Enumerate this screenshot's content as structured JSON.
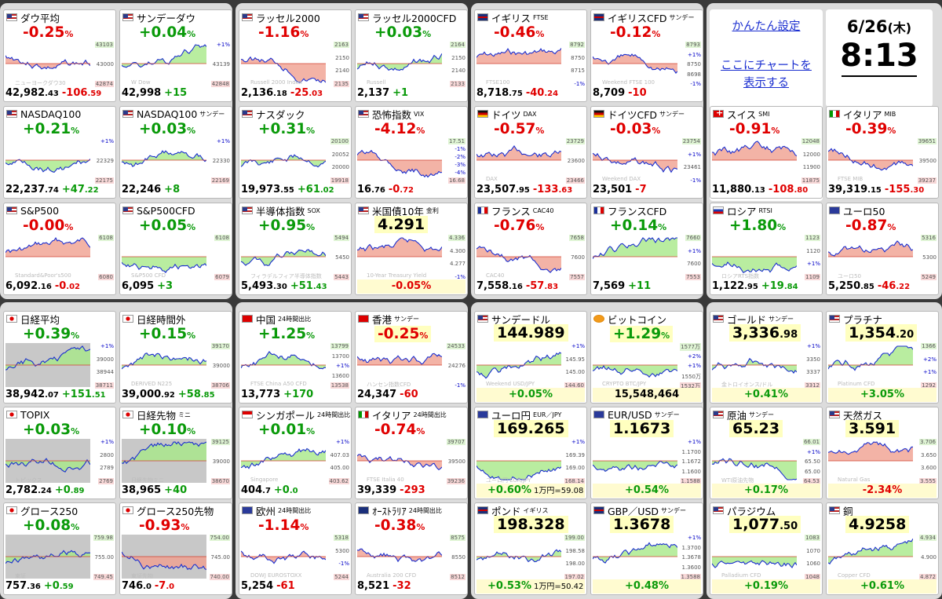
{
  "settings": {
    "easy_setup_label": "かんたん設定",
    "chart_here_line1": "ここにチャートを",
    "chart_here_line2": "表示する"
  },
  "clock": {
    "date": "6/26",
    "weekday": "(木)",
    "time": "8:13"
  },
  "colors": {
    "up": "#0a9a0a",
    "down": "#e00000",
    "fill_up": "#a8e888",
    "fill_down": "#f0a090",
    "line": "#1a2ed0"
  },
  "tiles": [
    {
      "flag": "us",
      "name": "ダウ平均",
      "sub": "",
      "pct": "-0.25",
      "dir": "dn",
      "scale": [
        "43103",
        "43000",
        "42874"
      ],
      "wm": "ニューヨークダウ30",
      "value": "42,982",
      "value_dec": ".43",
      "change": "-106",
      "change_dec": ".59",
      "cdir": "dn"
    },
    {
      "flag": "us",
      "name": "サンデーダウ",
      "sub": "",
      "pct": "+0.04",
      "dir": "up",
      "scale": [
        "+1%",
        "43139",
        "42848"
      ],
      "wm": "W            Dow",
      "value": "42,998",
      "value_dec": "",
      "change": "+15",
      "change_dec": "",
      "cdir": "up"
    },
    {
      "flag": "us",
      "name": "ラッセル2000",
      "sub": "",
      "pct": "-1.16",
      "dir": "dn",
      "scale": [
        "2163",
        "2150",
        "2140",
        "2135"
      ],
      "wm": "Russell 2000 Index",
      "value": "2,136",
      "value_dec": ".18",
      "change": "-25",
      "change_dec": ".03",
      "cdir": "dn"
    },
    {
      "flag": "us",
      "name": "ラッセル2000CFD",
      "sub": "",
      "pct": "+0.03",
      "dir": "up",
      "scale": [
        "2164",
        "2150",
        "2140",
        "2133"
      ],
      "wm": "Russell",
      "value": "2,137",
      "value_dec": "",
      "change": "+1",
      "change_dec": "",
      "cdir": "up"
    },
    {
      "flag": "uk",
      "name": "イギリス",
      "sub": "FTSE",
      "pct": "-0.46",
      "dir": "dn",
      "scale": [
        "8792",
        "8750",
        "8715",
        "-1%"
      ],
      "wm": "FTSE100",
      "value": "8,718",
      "value_dec": ".75",
      "change": "-40",
      "change_dec": ".24",
      "cdir": "dn"
    },
    {
      "flag": "uk",
      "name": "イギリスCFD",
      "sub": "サンデー",
      "pct": "-0.12",
      "dir": "dn",
      "scale": [
        "8793",
        "+1%",
        "8750",
        "8698",
        "-1%"
      ],
      "wm": "Weekend FTSE 100",
      "value": "8,709",
      "value_dec": "",
      "change": "-10",
      "change_dec": "",
      "cdir": "dn"
    },
    {
      "flag": "us",
      "name": "NASDAQ100",
      "sub": "",
      "pct": "+0.21",
      "dir": "up",
      "scale": [
        "+1%",
        "22329",
        "22175"
      ],
      "wm": "",
      "value": "22,237",
      "value_dec": ".74",
      "change": "+47",
      "change_dec": ".22",
      "cdir": "up"
    },
    {
      "flag": "us",
      "name": "NASDAQ100",
      "sub": "サンデー",
      "pct": "+0.03",
      "dir": "up",
      "scale": [
        "+1%",
        "22330",
        "22169"
      ],
      "wm": "",
      "value": "22,246",
      "value_dec": "",
      "change": "+8",
      "change_dec": "",
      "cdir": "up"
    },
    {
      "flag": "us",
      "name": "ナスダック",
      "sub": "",
      "pct": "+0.31",
      "dir": "up",
      "scale": [
        "20100",
        "20052",
        "20000",
        "19918"
      ],
      "wm": "",
      "value": "19,973",
      "value_dec": ".55",
      "change": "+61",
      "change_dec": ".02",
      "cdir": "up"
    },
    {
      "flag": "us",
      "name": "恐怖指数",
      "sub": "VIX",
      "pct": "-4.12",
      "dir": "dn",
      "scale": [
        "17.51",
        "-1%",
        "-2%",
        "-3%",
        "-4%",
        "16.68"
      ],
      "wm": "",
      "value": "16",
      "value_dec": ".76",
      "change": "-0",
      "change_dec": ".72",
      "cdir": "dn"
    },
    {
      "flag": "de",
      "name": "ドイツ",
      "sub": "DAX",
      "pct": "-0.57",
      "dir": "dn",
      "scale": [
        "23729",
        "23600",
        "23466"
      ],
      "wm": "DAX",
      "value": "23,507",
      "value_dec": ".95",
      "change": "-133",
      "change_dec": ".63",
      "cdir": "dn"
    },
    {
      "flag": "de",
      "name": "ドイツCFD",
      "sub": "サンデー",
      "pct": "-0.03",
      "dir": "dn",
      "scale": [
        "23754",
        "+1%",
        "23461",
        "-1%"
      ],
      "wm": "Weekend DAX",
      "value": "23,501",
      "value_dec": "",
      "change": "-7",
      "change_dec": "",
      "cdir": "dn"
    },
    {
      "flag": "ch",
      "name": "スイス",
      "sub": "SMI",
      "pct": "-0.91",
      "dir": "dn",
      "scale": [
        "12048",
        "12000",
        "11900",
        "11875"
      ],
      "wm": "",
      "value": "11,880",
      "value_dec": ".13",
      "change": "-108",
      "change_dec": ".80",
      "cdir": "dn"
    },
    {
      "flag": "it",
      "name": "イタリア",
      "sub": "MIB",
      "pct": "-0.39",
      "dir": "dn",
      "scale": [
        "39651",
        "39500",
        "39237"
      ],
      "wm": "FTSE MIB",
      "value": "39,319",
      "value_dec": ".15",
      "change": "-155",
      "change_dec": ".30",
      "cdir": "dn"
    },
    {
      "flag": "us",
      "name": "S&P500",
      "sub": "",
      "pct": "-0.00",
      "dir": "dn",
      "scale": [
        "6108",
        "6080"
      ],
      "wm": "Standard&Poor's500",
      "value": "6,092",
      "value_dec": ".16",
      "change": "-0",
      "change_dec": ".02",
      "cdir": "dn"
    },
    {
      "flag": "us",
      "name": "S&P500CFD",
      "sub": "",
      "pct": "+0.05",
      "dir": "up",
      "scale": [
        "6108",
        "6079"
      ],
      "wm": "S&P500 CFD",
      "value": "6,095",
      "value_dec": "",
      "change": "+3",
      "change_dec": "",
      "cdir": "up"
    },
    {
      "flag": "us",
      "name": "半導体指数",
      "sub": "SOX",
      "pct": "+0.95",
      "dir": "up",
      "scale": [
        "5494",
        "5450",
        "5443"
      ],
      "wm": "フィラデルフィア半導体指数",
      "value": "5,493",
      "value_dec": ".30",
      "change": "+51",
      "change_dec": ".43",
      "cdir": "up"
    },
    {
      "flag": "us",
      "name": "米国債10年",
      "sub": "金利",
      "big": "4.291",
      "dir": "bk",
      "scale": [
        "4.336",
        "4.300",
        "4.277",
        "-1%"
      ],
      "wm": "10-Year Treasury Yield",
      "footcenter": "-0.05%",
      "fdir": "dn"
    },
    {
      "flag": "fr",
      "name": "フランス",
      "sub": "CAC40",
      "pct": "-0.76",
      "dir": "dn",
      "scale": [
        "7658",
        "7600",
        "7557"
      ],
      "wm": "CAC40",
      "value": "7,558",
      "value_dec": ".16",
      "change": "-57",
      "change_dec": ".83",
      "cdir": "dn"
    },
    {
      "flag": "fr",
      "name": "フランスCFD",
      "sub": "",
      "pct": "+0.14",
      "dir": "up",
      "scale": [
        "7660",
        "+1%",
        "7600",
        "7553"
      ],
      "wm": "",
      "value": "7,569",
      "value_dec": "",
      "change": "+11",
      "change_dec": "",
      "cdir": "up"
    },
    {
      "flag": "ru",
      "name": "ロシア",
      "sub": "RTSI",
      "pct": "+1.80",
      "dir": "up",
      "scale": [
        "1123",
        "1120",
        "+1%",
        "1109"
      ],
      "wm": "ロシアRTS指数",
      "value": "1,122",
      "value_dec": ".95",
      "change": "+19",
      "change_dec": ".84",
      "cdir": "up"
    },
    {
      "flag": "eu",
      "name": "ユーロ50",
      "sub": "",
      "pct": "-0.87",
      "dir": "dn",
      "scale": [
        "5316",
        "5300",
        "5249"
      ],
      "wm": "ユーロ50",
      "value": "5,250",
      "value_dec": ".85",
      "change": "-46",
      "change_dec": ".22",
      "cdir": "dn"
    },
    {
      "flag": "jp",
      "name": "日経平均",
      "sub": "",
      "pct": "+0.39",
      "dir": "up",
      "gray": true,
      "scale": [
        "+1%",
        "39000",
        "38944",
        "38711"
      ],
      "wm": "",
      "value": "38,942",
      "value_dec": ".07",
      "change": "+151",
      "change_dec": ".51",
      "cdir": "up"
    },
    {
      "flag": "jp",
      "name": "日経時間外",
      "sub": "",
      "pct": "+0.15",
      "dir": "up",
      "scale": [
        "39170",
        "39000",
        "38706"
      ],
      "wm": "DERIVED N225",
      "value": "39,000",
      "value_dec": ".92",
      "change": "+58",
      "change_dec": ".85",
      "cdir": "up"
    },
    {
      "flag": "cn",
      "name": "中国",
      "sub": "24時間出比",
      "pct": "+1.25",
      "dir": "up",
      "scale": [
        "13799",
        "13700",
        "+1%",
        "13600",
        "13538"
      ],
      "wm": "FTSE China A50 CFD",
      "value": "13,773",
      "value_dec": "",
      "change": "+170",
      "change_dec": "",
      "cdir": "up"
    },
    {
      "flag": "hk",
      "name": "香港",
      "sub": "サンデー",
      "pct": "-0.25",
      "dir": "dn",
      "hl": true,
      "scale": [
        "24533",
        "24276",
        "-1%"
      ],
      "wm": "ハンセン指数CFD",
      "value": "24,347",
      "value_dec": "",
      "change": "-60",
      "change_dec": "",
      "cdir": "dn"
    },
    {
      "flag": "us",
      "name": "サンデードル",
      "sub": "",
      "big": "144.989",
      "dir": "bk",
      "scale": [
        "+1%",
        "145.95",
        "145.00",
        "144.60"
      ],
      "wm": "Weekend USD/JPY",
      "footcenter": "+0.05%",
      "fdir": "up"
    },
    {
      "flag": "btc",
      "name": "ビットコイン",
      "sub": "",
      "pct": "+1.29",
      "dir": "up",
      "hl": true,
      "scale": [
        "1577万",
        "+2%",
        "+1%",
        "1550万",
        "1532万"
      ],
      "wm": "CRYPTO BTC/JPY",
      "value": "15,548,464",
      "value_dec": "",
      "change": "",
      "change_dec": "",
      "cdir": "bk"
    },
    {
      "flag": "us",
      "name": "ゴールド",
      "sub": "サンデー",
      "big": "3,336.98",
      "dir": "bk",
      "scale": [
        "+1%",
        "3350",
        "3337",
        "3312"
      ],
      "wm": "金トロイオンス/ドル",
      "footcenter": "+0.41%",
      "fdir": "up"
    },
    {
      "flag": "us",
      "name": "プラチナ",
      "sub": "",
      "big": "1,354.20",
      "dir": "bk",
      "scale": [
        "1366",
        "+2%",
        "+1%",
        "1292"
      ],
      "wm": "Platinum CFD",
      "footcenter": "+3.05%",
      "fdir": "up"
    },
    {
      "flag": "jp",
      "name": "TOPIX",
      "sub": "",
      "pct": "+0.03",
      "dir": "up",
      "gray": true,
      "scale": [
        "+1%",
        "2800",
        "2789",
        "2769"
      ],
      "wm": "トピックス",
      "value": "2,782",
      "value_dec": ".24",
      "change": "+0",
      "change_dec": ".89",
      "cdir": "up"
    },
    {
      "flag": "jp",
      "name": "日経先物",
      "sub": "ミニ",
      "pct": "+0.10",
      "dir": "up",
      "gray": true,
      "scale": [
        "39125",
        "39000",
        "38670"
      ],
      "wm": "日経先物ミニ",
      "value": "38,965",
      "value_dec": "",
      "change": "+40",
      "change_dec": "",
      "cdir": "up"
    },
    {
      "flag": "sg",
      "name": "シンガポール",
      "sub": "24時間出比",
      "pct": "+0.01",
      "dir": "up",
      "scale": [
        "+1%",
        "407.03",
        "405.00",
        "403.62"
      ],
      "wm": "Singapore",
      "value": "404",
      "value_dec": ".7",
      "change": "+0",
      "change_dec": ".0",
      "cdir": "up"
    },
    {
      "flag": "it",
      "name": "イタリア",
      "sub": "24時間出比",
      "pct": "-0.74",
      "dir": "dn",
      "scale": [
        "39707",
        "39500",
        "39236"
      ],
      "wm": "FTSE Italia 40",
      "value": "39,339",
      "value_dec": "",
      "change": "-293",
      "change_dec": "",
      "cdir": "dn"
    },
    {
      "flag": "eu",
      "name": "ユーロ円",
      "sub": "EUR／JPY",
      "big": "169.265",
      "dir": "bk",
      "scale": [
        "+1%",
        "169.39",
        "169.00",
        "168.14"
      ],
      "wm": "ユーロ円 EUR/JPY",
      "footcenter": "+0.60%",
      "fdir": "up",
      "note": "1万円=59.08"
    },
    {
      "flag": "eu",
      "name": "EUR/USD",
      "sub": "サンデー",
      "big": "1.1673",
      "dir": "bk",
      "scale": [
        "+1%",
        "1.1700",
        "1.1672",
        "1.1600",
        "1.1588"
      ],
      "wm": "",
      "footcenter": "+0.54%",
      "fdir": "up"
    },
    {
      "flag": "us",
      "name": "原油",
      "sub": "サンデー",
      "big": "65.23",
      "dir": "bk",
      "scale": [
        "66.01",
        "+1%",
        "65.50",
        "65.00",
        "64.53"
      ],
      "wm": "WTI原油先物",
      "footcenter": "+0.17%",
      "fdir": "up"
    },
    {
      "flag": "us",
      "name": "天然ガス",
      "sub": "",
      "big": "3.591",
      "dir": "bk",
      "scale": [
        "3.706",
        "3.650",
        "3.600",
        "3.555"
      ],
      "wm": "Natural Gas",
      "footcenter": "-2.34%",
      "fdir": "dn"
    },
    {
      "flag": "jp",
      "name": "グロース250",
      "sub": "",
      "pct": "+0.08",
      "dir": "up",
      "gray": true,
      "scale": [
        "759.98",
        "755.00",
        "749.45"
      ],
      "wm": "東証",
      "value": "757",
      "value_dec": ".36",
      "change": "+0",
      "change_dec": ".59",
      "cdir": "up"
    },
    {
      "flag": "jp",
      "name": "グロース250先物",
      "sub": "",
      "pct": "-0.93",
      "dir": "dn",
      "gray": true,
      "scale": [
        "754.00",
        "745.00",
        "740.00"
      ],
      "wm": "東証先物",
      "value": "746",
      "value_dec": ".0",
      "change": "-7",
      "change_dec": ".0",
      "cdir": "dn"
    },
    {
      "flag": "eu",
      "name": "欧州",
      "sub": "24時間出比",
      "pct": "-1.14",
      "dir": "dn",
      "scale": [
        "5318",
        "5300",
        "-1%",
        "5244"
      ],
      "wm": "DOWJ EUROSTOXX",
      "value": "5,254",
      "value_dec": "",
      "change": "-61",
      "change_dec": "",
      "cdir": "dn"
    },
    {
      "flag": "au",
      "name": "ｵｰｽﾄﾗﾘｱ",
      "sub": "24時間出比",
      "pct": "-0.38",
      "dir": "dn",
      "scale": [
        "8575",
        "8550",
        "8512"
      ],
      "wm": "Australia 200 CFD",
      "value": "8,521",
      "value_dec": "",
      "change": "-32",
      "change_dec": "",
      "cdir": "dn"
    },
    {
      "flag": "uk",
      "name": "ポンド",
      "sub": "イギリス",
      "big": "198.328",
      "dir": "bk",
      "scale": [
        "199.00",
        "198.58",
        "198.00",
        "197.02"
      ],
      "wm": "",
      "footcenter": "+0.53%",
      "fdir": "up",
      "note": "1万円=50.42"
    },
    {
      "flag": "uk",
      "name": "GBP／USD",
      "sub": "サンデー",
      "big": "1.3678",
      "dir": "bk",
      "scale": [
        "+1%",
        "1.3700",
        "1.3678",
        "1.3600",
        "1.3588"
      ],
      "wm": "",
      "footcenter": "+0.48%",
      "fdir": "up"
    },
    {
      "flag": "us",
      "name": "パラジウム",
      "sub": "",
      "big": "1,077.50",
      "dir": "bk",
      "scale": [
        "1083",
        "1070",
        "1060",
        "1048"
      ],
      "wm": "Palladium CFD",
      "footcenter": "+0.19%",
      "fdir": "up"
    },
    {
      "flag": "us",
      "name": "銅",
      "sub": "",
      "big": "4.9258",
      "dir": "bk",
      "scale": [
        "4.934",
        "4.900",
        "4.872"
      ],
      "wm": "Copper CFD",
      "footcenter": "+0.61%",
      "fdir": "up"
    }
  ]
}
